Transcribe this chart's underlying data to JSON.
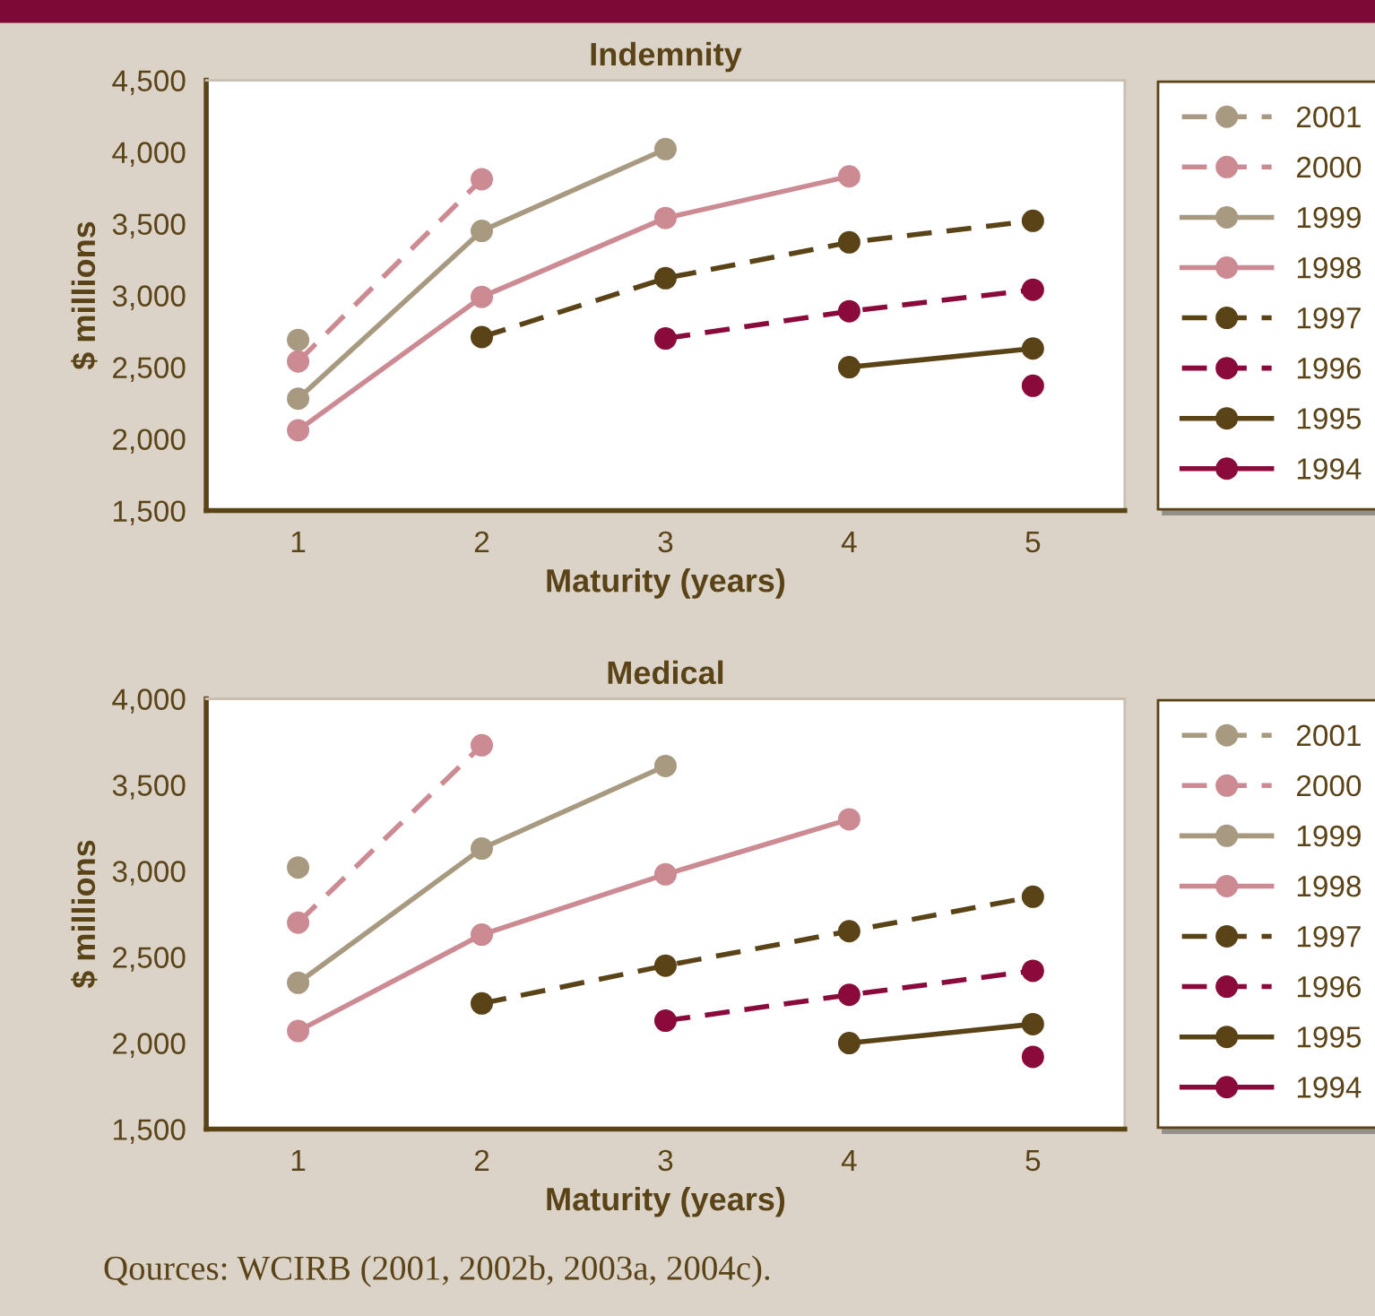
{
  "chart_data": [
    {
      "type": "line",
      "title": "Indemnity",
      "xlabel": "Maturity (years)",
      "ylabel": "$ millions",
      "xlim": [
        0.5,
        5.5
      ],
      "xticks": [
        1,
        2,
        3,
        4,
        5
      ],
      "ylim": [
        1500,
        4500
      ],
      "yticks": [
        {
          "value": 1500,
          "label": "1,500"
        },
        {
          "value": 2000,
          "label": "2,000"
        },
        {
          "value": 2500,
          "label": "2,500"
        },
        {
          "value": 3000,
          "label": "3,000"
        },
        {
          "value": 3500,
          "label": "3,500"
        },
        {
          "value": 4000,
          "label": "4,000"
        },
        {
          "value": 4500,
          "label": "4,500"
        }
      ],
      "legend": "right",
      "marker": "circle",
      "series": [
        {
          "name": "2001",
          "color": "#a89a80",
          "line_style": "dashed",
          "x": [
            1
          ],
          "values": [
            2690
          ]
        },
        {
          "name": "2000",
          "color": "#cc8a93",
          "line_style": "dashed",
          "x": [
            1,
            2
          ],
          "values": [
            2540,
            3810
          ]
        },
        {
          "name": "1999",
          "color": "#a89a80",
          "line_style": "solid",
          "x": [
            1,
            2,
            3
          ],
          "values": [
            2280,
            3450,
            4020
          ]
        },
        {
          "name": "1998",
          "color": "#cc8a93",
          "line_style": "solid",
          "x": [
            1,
            2,
            3,
            4
          ],
          "values": [
            2060,
            2990,
            3540,
            3830
          ]
        },
        {
          "name": "1997",
          "color": "#5a4317",
          "line_style": "dashed",
          "x": [
            2,
            3,
            4,
            5
          ],
          "values": [
            2710,
            3120,
            3370,
            3520
          ]
        },
        {
          "name": "1996",
          "color": "#8b0a3c",
          "line_style": "dashed",
          "x": [
            3,
            4,
            5
          ],
          "values": [
            2700,
            2890,
            3040
          ]
        },
        {
          "name": "1995",
          "color": "#5a4317",
          "line_style": "solid",
          "x": [
            4,
            5
          ],
          "values": [
            2500,
            2630
          ]
        },
        {
          "name": "1994",
          "color": "#8b0a3c",
          "line_style": "solid",
          "x": [
            5
          ],
          "values": [
            2370
          ]
        }
      ]
    },
    {
      "type": "line",
      "title": "Medical",
      "xlabel": "Maturity (years)",
      "ylabel": "$ millions",
      "xlim": [
        0.5,
        5.5
      ],
      "xticks": [
        1,
        2,
        3,
        4,
        5
      ],
      "ylim": [
        1500,
        4000
      ],
      "yticks": [
        {
          "value": 1500,
          "label": "1,500"
        },
        {
          "value": 2000,
          "label": "2,000"
        },
        {
          "value": 2500,
          "label": "2,500"
        },
        {
          "value": 3000,
          "label": "3,000"
        },
        {
          "value": 3500,
          "label": "3,500"
        },
        {
          "value": 4000,
          "label": "4,000"
        }
      ],
      "legend": "right",
      "marker": "circle",
      "annotations": [
        "Qources: WCIRB (2001, 2002b, 2003a, 2004c)."
      ],
      "series": [
        {
          "name": "2001",
          "color": "#a89a80",
          "line_style": "dashed",
          "x": [
            1
          ],
          "values": [
            3020
          ]
        },
        {
          "name": "2000",
          "color": "#cc8a93",
          "line_style": "dashed",
          "x": [
            1,
            2
          ],
          "values": [
            2700,
            3730
          ]
        },
        {
          "name": "1999",
          "color": "#a89a80",
          "line_style": "solid",
          "x": [
            1,
            2,
            3
          ],
          "values": [
            2350,
            3130,
            3610
          ]
        },
        {
          "name": "1998",
          "color": "#cc8a93",
          "line_style": "solid",
          "x": [
            1,
            2,
            3,
            4
          ],
          "values": [
            2070,
            2630,
            2980,
            3300
          ]
        },
        {
          "name": "1997",
          "color": "#5a4317",
          "line_style": "dashed",
          "x": [
            2,
            3,
            4,
            5
          ],
          "values": [
            2230,
            2450,
            2650,
            2850
          ]
        },
        {
          "name": "1996",
          "color": "#8b0a3c",
          "line_style": "dashed",
          "x": [
            3,
            4,
            5
          ],
          "values": [
            2130,
            2280,
            2420
          ]
        },
        {
          "name": "1995",
          "color": "#5a4317",
          "line_style": "solid",
          "x": [
            4,
            5
          ],
          "values": [
            2000,
            2110
          ]
        },
        {
          "name": "1994",
          "color": "#8b0a3c",
          "line_style": "solid",
          "x": [
            5
          ],
          "values": [
            1920
          ]
        }
      ]
    }
  ]
}
